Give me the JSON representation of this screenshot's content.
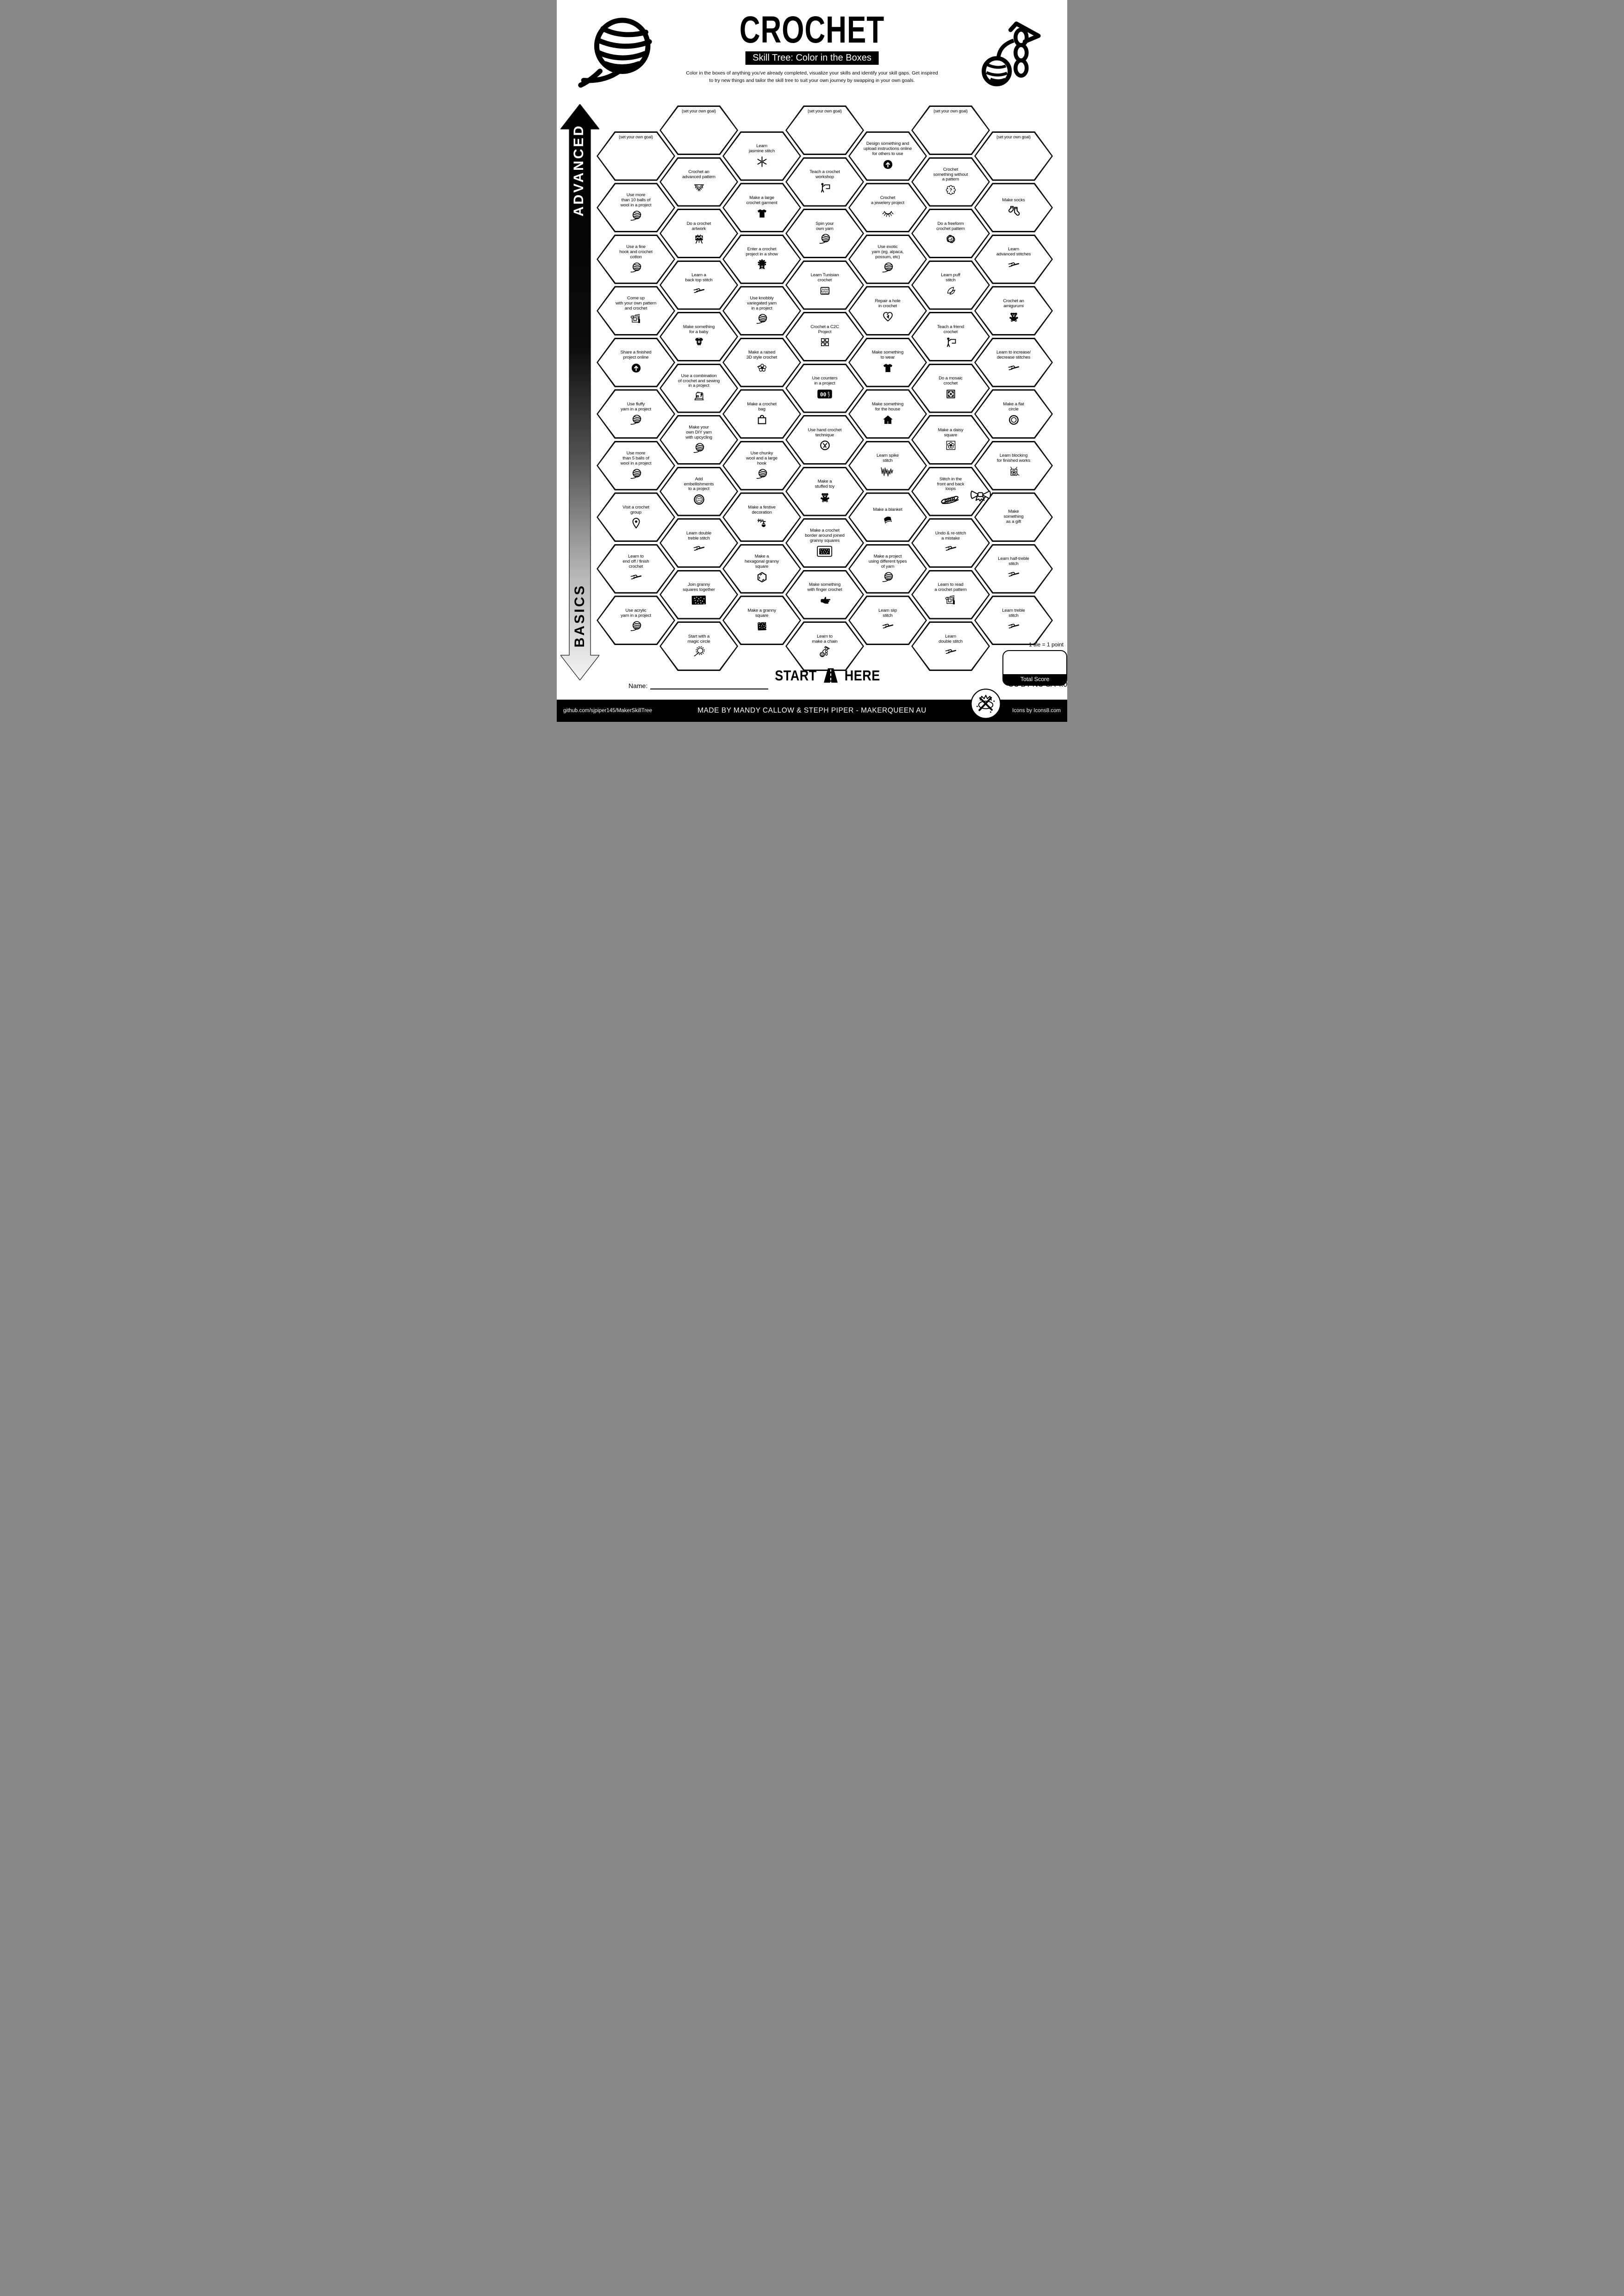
{
  "header": {
    "title": "CROCHET",
    "subtitle": "Skill Tree: Color in the Boxes",
    "description": "Color in the boxes of anything you've already completed, visualize your skills and identify your skill gaps.  Get inspired\nto try new things and tailor the skill tree to suit your own journey by swapping in your own goals.",
    "corner_left_icon": "yarn-ball",
    "corner_right_icon": "chain-yarn"
  },
  "axis": {
    "advanced": "ADVANCED",
    "basics": "BASICS"
  },
  "grid": {
    "columns": [
      {
        "tiles": [
          {
            "label": "(set your own goal)",
            "goal": true
          },
          {
            "label": "Use more\nthan 10 balls of\nwool in a project",
            "icon": "yarn-ball"
          },
          {
            "label": "Use a fine\nhook and crochet\ncotton",
            "icon": "yarn-ball"
          },
          {
            "label": "Come up\nwith your own pattern\nand crochet",
            "icon": "blueprint"
          },
          {
            "label": "Share a finished\nproject online",
            "icon": "upload-circle"
          },
          {
            "label": "Use fluffy\nyarn in a project",
            "icon": "yarn-ball"
          },
          {
            "label": "Use more\nthan 5 balls of\nwool in a project",
            "icon": "yarn-ball"
          },
          {
            "label": "Visit a crochet\ngroup",
            "icon": "map-pin"
          },
          {
            "label": "Learn to\nend off / finish\ncrochet",
            "icon": "crochet-hook"
          },
          {
            "label": "Use acrylic\nyarn in a project",
            "icon": "yarn-ball"
          }
        ]
      },
      {
        "tiles": [
          {
            "label": "(set your own goal)",
            "goal": true
          },
          {
            "label": "Crochet an\nadvanced pattern",
            "icon": "shawl"
          },
          {
            "label": "Do a crochet\nartwork",
            "icon": "easel"
          },
          {
            "label": "Learn a\nback top stitch",
            "icon": "crochet-hook"
          },
          {
            "label": "Make something\nfor a baby",
            "icon": "onesie"
          },
          {
            "label": "Use a combination\nof crochet and sewing\nin a project",
            "icon": "sewing-machine"
          },
          {
            "label": "Make your\nown DIY yarn\nwith upcycling",
            "icon": "yarn-ball"
          },
          {
            "label": "Add\nembellishments\nto a project",
            "icon": "button"
          },
          {
            "label": "Learn double\ntreble stitch",
            "icon": "crochet-hook"
          },
          {
            "label": "Join granny\nsquares together",
            "icon": "speckled-rect"
          },
          {
            "label": "Start with a\nmagic circle",
            "icon": "magic-circle"
          }
        ]
      },
      {
        "tiles": [
          {
            "label": "Learn\njasmine stitch",
            "icon": "jasmine"
          },
          {
            "label": "Make a large\ncrochet garment",
            "icon": "tshirt"
          },
          {
            "label": "Enter a crochet\nproject in a show",
            "icon": "rosette"
          },
          {
            "label": "Use knobbly\nvariegated yarn\nin a project",
            "icon": "yarn-ball"
          },
          {
            "label": "Make a raised\n3D style crochet",
            "icon": "flower-3d"
          },
          {
            "label": "Make a crochet\nbag",
            "icon": "shopping-bag"
          },
          {
            "label": "Use chunky\nwool and a large\nhook",
            "icon": "yarn-ball"
          },
          {
            "label": "Make a festive\ndecoration",
            "icon": "ornament-branch"
          },
          {
            "label": "Make a\nhexagonal granny\nsquare",
            "icon": "hexagon-outline"
          },
          {
            "label": "Make a granny\nsquare",
            "icon": "speckled-square"
          }
        ]
      },
      {
        "tiles": [
          {
            "label": "(set your own goal)",
            "goal": true
          },
          {
            "label": "Teach a crochet\nworkshop",
            "icon": "presenter"
          },
          {
            "label": "Spin your\nown yarn",
            "icon": "yarn-ball"
          },
          {
            "label": "Learn Tunisian\ncrochet",
            "icon": "swatch"
          },
          {
            "label": "Crochet a C2C\nProject",
            "icon": "c2c-grid"
          },
          {
            "label": "Use counters\nin a project",
            "icon": "tally-counter"
          },
          {
            "label": "Use hand crochet\ntechnique",
            "icon": "circle-x"
          },
          {
            "label": "Make a\nstuffed toy",
            "icon": "teddy-bear"
          },
          {
            "label": "Make a crochet\nborder around joined\ngranny squares",
            "icon": "bordered-swatch"
          },
          {
            "label": "Make something\nwith finger crochet",
            "icon": "pointing-hand"
          },
          {
            "label": "Learn to\nmake a chain",
            "icon": "chain-yarn"
          }
        ]
      },
      {
        "tiles": [
          {
            "label": "Design something and\nupload instructions online\nfor others to use",
            "icon": "upload-circle"
          },
          {
            "label": "Crochet\na jewelery project",
            "icon": "necklace"
          },
          {
            "label": "Use exotic\nyarn (eg. alpaca,\npossum, etc)",
            "icon": "yarn-ball"
          },
          {
            "label": "Repair a hole\nin crochet",
            "icon": "mended-heart"
          },
          {
            "label": "Make something\nto wear",
            "icon": "tshirt"
          },
          {
            "label": "Make something\nfor the house",
            "icon": "house"
          },
          {
            "label": "Learn spike\nstitch",
            "icon": "zigzag"
          },
          {
            "label": "Make a blanket",
            "icon": "blanket"
          },
          {
            "label": "Make a project\nusing different types\nof yarn",
            "icon": "yarn-ball"
          },
          {
            "label": "Learn slip\nstitch",
            "icon": "crochet-hook"
          }
        ]
      },
      {
        "tiles": [
          {
            "label": "(set your own goal)",
            "goal": true
          },
          {
            "label": "Crochet\nsomething without\na pattern",
            "icon": "scallop-question"
          },
          {
            "label": "Do a freeform\ncrochet pattern",
            "icon": "freeform-scribble"
          },
          {
            "label": "Learn puff\nstitch",
            "icon": "puff-leaves"
          },
          {
            "label": "Teach a friend\ncrochet",
            "icon": "presenter"
          },
          {
            "label": "Do a mosaic\ncrochet",
            "icon": "mosaic-square"
          },
          {
            "label": "Make a daisy\nsquare",
            "icon": "daisy-square"
          },
          {
            "label": "Stitch in the\nfront and back\nloops",
            "icon": "loops-braid"
          },
          {
            "label": "Undo & re-stitch\na mistake",
            "icon": "crochet-hook"
          },
          {
            "label": "Learn to read\na crochet pattern",
            "icon": "blueprint"
          },
          {
            "label": "Learn\ndouble stitch",
            "icon": "crochet-hook"
          }
        ]
      },
      {
        "tiles": [
          {
            "label": "(set your own goal)",
            "goal": true
          },
          {
            "label": "Make socks",
            "icon": "socks"
          },
          {
            "label": "Learn\nadvanced stitches",
            "icon": "crochet-hook"
          },
          {
            "label": "Crochet an\namigurumi",
            "icon": "teddy-bear"
          },
          {
            "label": "Learn to increase/\ndecrease stitches",
            "icon": "crochet-hook"
          },
          {
            "label": "Make a flat\ncircle",
            "icon": "concentric-circles"
          },
          {
            "label": "Learn blocking\nfor finished works",
            "icon": "blocking-square"
          },
          {
            "label": "Make\nsomething\nas a gift",
            "icon": "gift-bow",
            "icon_pos": "corner"
          },
          {
            "label": "Learn half-treble\nstitch",
            "icon": "crochet-hook"
          },
          {
            "label": "Learn treble\nstitch",
            "icon": "crochet-hook"
          }
        ]
      }
    ]
  },
  "start": {
    "left": "START",
    "right": "HERE",
    "icon": "road"
  },
  "name_label": "Name:",
  "score": {
    "tile_note": "1 tile = 1 point",
    "total_label": "Total Score",
    "value": ""
  },
  "license": {
    "text": "CC BY-NC-SA 4.0",
    "logo_icon": "makerqueen-logo"
  },
  "footer": {
    "left": "github.com/sjpiper145/MakerSkillTree",
    "center": "MADE BY MANDY CALLOW & STEPH PIPER  -  MAKERQUEEN AU",
    "right": "Icons by Icons8.com"
  },
  "colors": {
    "ink": "#000000",
    "paper": "#ffffff"
  }
}
